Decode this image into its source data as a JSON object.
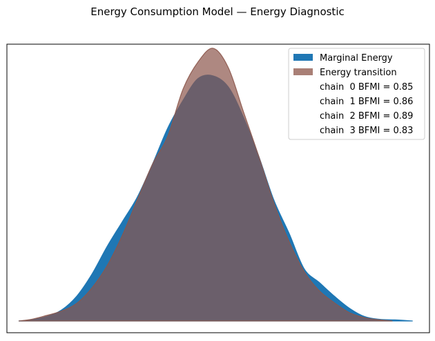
{
  "chart_data": {
    "type": "area",
    "title": "Energy Consumption Model — Energy Diagnostic",
    "xlabel": "",
    "ylabel": "",
    "x_ticks_visible": false,
    "y_ticks_visible": false,
    "grid": false,
    "legend_position": "top-right",
    "xlim": [
      -4.0,
      4.2
    ],
    "ylim": [
      -0.02,
      0.5
    ],
    "series": [
      {
        "name": "Marginal Energy",
        "color": "#1f77b4",
        "opacity": 1.0,
        "x": [
          -3.85,
          -3.6,
          -3.3,
          -3.0,
          -2.7,
          -2.4,
          -2.1,
          -1.8,
          -1.5,
          -1.2,
          -0.9,
          -0.6,
          -0.3,
          0.0,
          0.3,
          0.6,
          0.9,
          1.2,
          1.5,
          1.8,
          2.1,
          2.4,
          2.7,
          3.0,
          3.3,
          3.6,
          3.95
        ],
        "values": [
          0.0,
          0.002,
          0.008,
          0.02,
          0.045,
          0.085,
          0.135,
          0.18,
          0.225,
          0.285,
          0.35,
          0.4,
          0.44,
          0.445,
          0.425,
          0.37,
          0.3,
          0.22,
          0.16,
          0.095,
          0.07,
          0.045,
          0.023,
          0.008,
          0.003,
          0.002,
          0.0
        ]
      },
      {
        "name": "Energy transition",
        "color": "#8c564b",
        "opacity": 0.7,
        "x": [
          -3.85,
          -3.6,
          -3.3,
          -3.0,
          -2.7,
          -2.4,
          -2.1,
          -1.8,
          -1.5,
          -1.2,
          -0.9,
          -0.6,
          -0.3,
          0.0,
          0.3,
          0.6,
          0.9,
          1.2,
          1.5,
          1.8,
          2.1,
          2.4,
          2.7,
          3.0,
          3.3,
          3.55
        ],
        "values": [
          0.0,
          0.003,
          0.01,
          0.018,
          0.032,
          0.06,
          0.1,
          0.155,
          0.22,
          0.285,
          0.335,
          0.42,
          0.47,
          0.495,
          0.46,
          0.38,
          0.3,
          0.215,
          0.145,
          0.09,
          0.055,
          0.033,
          0.015,
          0.006,
          0.002,
          0.0
        ]
      }
    ],
    "legend_entries": [
      {
        "label": "Marginal Energy",
        "swatch": "#1f77b4"
      },
      {
        "label": "Energy transition",
        "swatch": "#a97f76"
      },
      {
        "label": "chain  0 BFMI = 0.85",
        "swatch": null
      },
      {
        "label": "chain  1 BFMI = 0.86",
        "swatch": null
      },
      {
        "label": "chain  2 BFMI = 0.89",
        "swatch": null
      },
      {
        "label": "chain  3 BFMI = 0.83",
        "swatch": null
      }
    ]
  }
}
